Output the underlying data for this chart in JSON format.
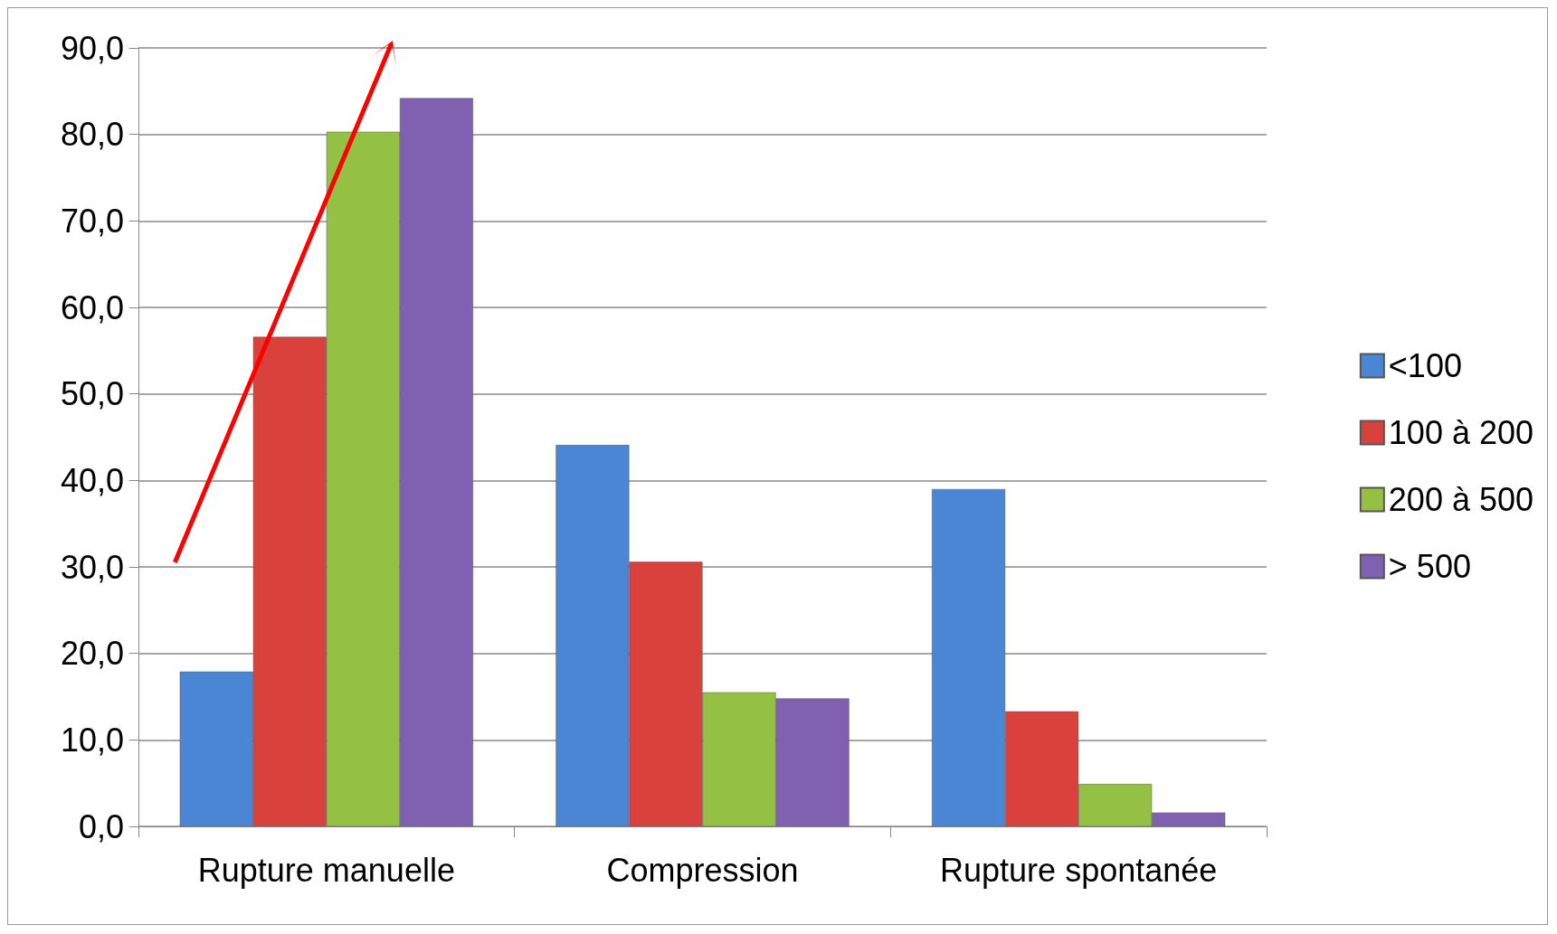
{
  "chart_data": {
    "type": "bar",
    "categories": [
      "Rupture manuelle",
      "Compression",
      "Rupture spontanée"
    ],
    "series": [
      {
        "name": "<100",
        "color": "#4a86d4",
        "values": [
          17.9,
          44.1,
          39.0
        ]
      },
      {
        "name": "100 à 200",
        "color": "#d9413d",
        "values": [
          56.6,
          30.6,
          13.3
        ]
      },
      {
        "name": "200 à 500",
        "color": "#94c044",
        "values": [
          80.3,
          15.5,
          4.9
        ]
      },
      {
        "name": "> 500",
        "color": "#8060b0",
        "values": [
          84.2,
          14.8,
          1.6
        ]
      }
    ],
    "ylim": [
      0,
      90
    ],
    "yticks": [
      {
        "value": 0,
        "label": "0,0"
      },
      {
        "value": 10,
        "label": "10,0"
      },
      {
        "value": 20,
        "label": "20,0"
      },
      {
        "value": 30,
        "label": "30,0"
      },
      {
        "value": 40,
        "label": "40,0"
      },
      {
        "value": 50,
        "label": "50,0"
      },
      {
        "value": 60,
        "label": "60,0"
      },
      {
        "value": 70,
        "label": "70,0"
      },
      {
        "value": 80,
        "label": "80,0"
      },
      {
        "value": 90,
        "label": "90,0"
      }
    ],
    "grid": "y",
    "legend": "right"
  }
}
